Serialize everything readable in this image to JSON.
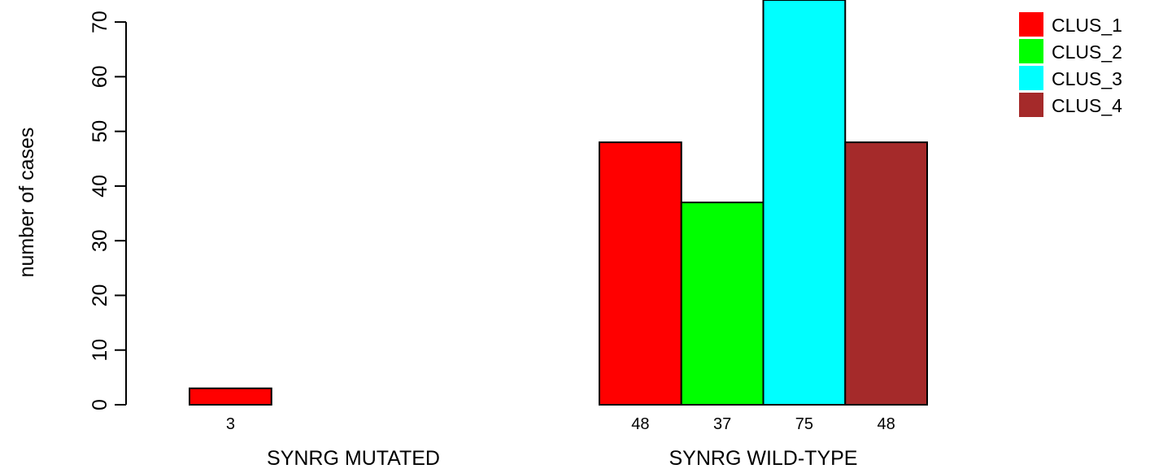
{
  "chart_data": {
    "type": "bar",
    "ylabel": "number of cases",
    "ylim": [
      0,
      75
    ],
    "yticks": [
      0,
      10,
      20,
      30,
      40,
      50,
      60,
      70
    ],
    "groups": [
      {
        "label": "SYNRG MUTATED",
        "values": [
          3,
          0,
          0,
          0
        ],
        "value_labels": [
          "3",
          "",
          "",
          ""
        ]
      },
      {
        "label": "SYNRG WILD-TYPE",
        "values": [
          48,
          37,
          75,
          48
        ],
        "value_labels": [
          "48",
          "37",
          "75",
          "48"
        ]
      }
    ],
    "series": [
      {
        "name": "CLUS_1",
        "color": "#ff0000"
      },
      {
        "name": "CLUS_2",
        "color": "#00ff00"
      },
      {
        "name": "CLUS_3",
        "color": "#00ffff"
      },
      {
        "name": "CLUS_4",
        "color": "#a52a2a"
      }
    ],
    "legend_position": "top-right",
    "grid": false
  }
}
